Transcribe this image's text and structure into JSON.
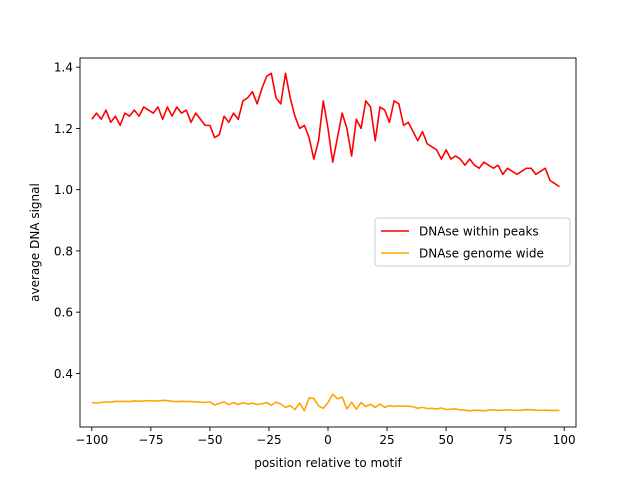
{
  "chart_data": {
    "type": "line",
    "title": "",
    "xlabel": "position relative to motif",
    "ylabel": "average DNA signal",
    "xlim": [
      -105,
      105
    ],
    "ylim": [
      0.225,
      1.43
    ],
    "xticks": [
      -100,
      -75,
      -50,
      -25,
      0,
      25,
      50,
      75,
      100
    ],
    "xtick_labels": [
      "−100",
      "−75",
      "−50",
      "−25",
      "0",
      "25",
      "50",
      "75",
      "100"
    ],
    "yticks": [
      0.4,
      0.6,
      0.8,
      1.0,
      1.2,
      1.4
    ],
    "ytick_labels": [
      "0.4",
      "0.6",
      "0.8",
      "1.0",
      "1.2",
      "1.4"
    ],
    "grid": false,
    "legend_position": "center-right",
    "series": [
      {
        "name": "DNAse within peaks",
        "color": "#ff0000",
        "x": [
          -100,
          -98,
          -96,
          -94,
          -92,
          -90,
          -88,
          -86,
          -84,
          -82,
          -80,
          -78,
          -76,
          -74,
          -72,
          -70,
          -68,
          -66,
          -64,
          -62,
          -60,
          -58,
          -56,
          -54,
          -52,
          -50,
          -48,
          -46,
          -44,
          -42,
          -40,
          -38,
          -36,
          -34,
          -32,
          -30,
          -28,
          -26,
          -24,
          -22,
          -20,
          -18,
          -16,
          -14,
          -12,
          -10,
          -8,
          -6,
          -4,
          -2,
          0,
          2,
          4,
          6,
          8,
          10,
          12,
          14,
          16,
          18,
          20,
          22,
          24,
          26,
          28,
          30,
          32,
          34,
          36,
          38,
          40,
          42,
          44,
          46,
          48,
          50,
          52,
          54,
          56,
          58,
          60,
          62,
          64,
          66,
          68,
          70,
          72,
          74,
          76,
          78,
          80,
          82,
          84,
          86,
          88,
          90,
          92,
          94,
          96,
          98
        ],
        "values": [
          1.23,
          1.25,
          1.23,
          1.26,
          1.22,
          1.24,
          1.21,
          1.25,
          1.24,
          1.26,
          1.24,
          1.27,
          1.26,
          1.25,
          1.27,
          1.23,
          1.27,
          1.24,
          1.27,
          1.25,
          1.26,
          1.22,
          1.25,
          1.23,
          1.21,
          1.21,
          1.17,
          1.18,
          1.24,
          1.22,
          1.25,
          1.23,
          1.29,
          1.3,
          1.32,
          1.28,
          1.33,
          1.37,
          1.38,
          1.3,
          1.28,
          1.38,
          1.3,
          1.24,
          1.2,
          1.21,
          1.17,
          1.1,
          1.16,
          1.29,
          1.2,
          1.09,
          1.17,
          1.25,
          1.2,
          1.11,
          1.23,
          1.2,
          1.29,
          1.27,
          1.16,
          1.27,
          1.26,
          1.22,
          1.29,
          1.28,
          1.21,
          1.22,
          1.19,
          1.16,
          1.19,
          1.15,
          1.14,
          1.13,
          1.1,
          1.13,
          1.1,
          1.11,
          1.1,
          1.08,
          1.1,
          1.08,
          1.07,
          1.09,
          1.08,
          1.07,
          1.08,
          1.05,
          1.07,
          1.06,
          1.05,
          1.06,
          1.07,
          1.07,
          1.05,
          1.06,
          1.07,
          1.03,
          1.02,
          1.01
        ]
      },
      {
        "name": "DNAse genome wide",
        "color": "#ffa500",
        "x": [
          -100,
          -98,
          -96,
          -94,
          -92,
          -90,
          -88,
          -86,
          -84,
          -82,
          -80,
          -78,
          -76,
          -74,
          -72,
          -70,
          -68,
          -66,
          -64,
          -62,
          -60,
          -58,
          -56,
          -54,
          -52,
          -50,
          -48,
          -46,
          -44,
          -42,
          -40,
          -38,
          -36,
          -34,
          -32,
          -30,
          -28,
          -26,
          -24,
          -22,
          -20,
          -18,
          -16,
          -14,
          -12,
          -10,
          -8,
          -6,
          -4,
          -2,
          0,
          2,
          4,
          6,
          8,
          10,
          12,
          14,
          16,
          18,
          20,
          22,
          24,
          26,
          28,
          30,
          32,
          34,
          36,
          38,
          40,
          42,
          44,
          46,
          48,
          50,
          52,
          54,
          56,
          58,
          60,
          62,
          64,
          66,
          68,
          70,
          72,
          74,
          76,
          78,
          80,
          82,
          84,
          86,
          88,
          90,
          92,
          94,
          96,
          98
        ],
        "values": [
          0.305,
          0.303,
          0.305,
          0.307,
          0.306,
          0.309,
          0.308,
          0.309,
          0.308,
          0.31,
          0.309,
          0.31,
          0.311,
          0.31,
          0.31,
          0.312,
          0.311,
          0.309,
          0.308,
          0.309,
          0.308,
          0.308,
          0.307,
          0.306,
          0.305,
          0.307,
          0.297,
          0.302,
          0.307,
          0.298,
          0.305,
          0.298,
          0.304,
          0.3,
          0.303,
          0.298,
          0.301,
          0.305,
          0.296,
          0.306,
          0.3,
          0.289,
          0.295,
          0.282,
          0.303,
          0.278,
          0.32,
          0.318,
          0.294,
          0.286,
          0.305,
          0.332,
          0.317,
          0.323,
          0.284,
          0.306,
          0.283,
          0.305,
          0.292,
          0.299,
          0.289,
          0.3,
          0.289,
          0.295,
          0.292,
          0.294,
          0.293,
          0.293,
          0.291,
          0.286,
          0.289,
          0.285,
          0.286,
          0.284,
          0.287,
          0.282,
          0.283,
          0.284,
          0.281,
          0.28,
          0.278,
          0.28,
          0.279,
          0.278,
          0.28,
          0.281,
          0.279,
          0.28,
          0.281,
          0.28,
          0.279,
          0.28,
          0.282,
          0.281,
          0.28,
          0.279,
          0.28,
          0.279,
          0.279,
          0.279
        ]
      }
    ]
  }
}
